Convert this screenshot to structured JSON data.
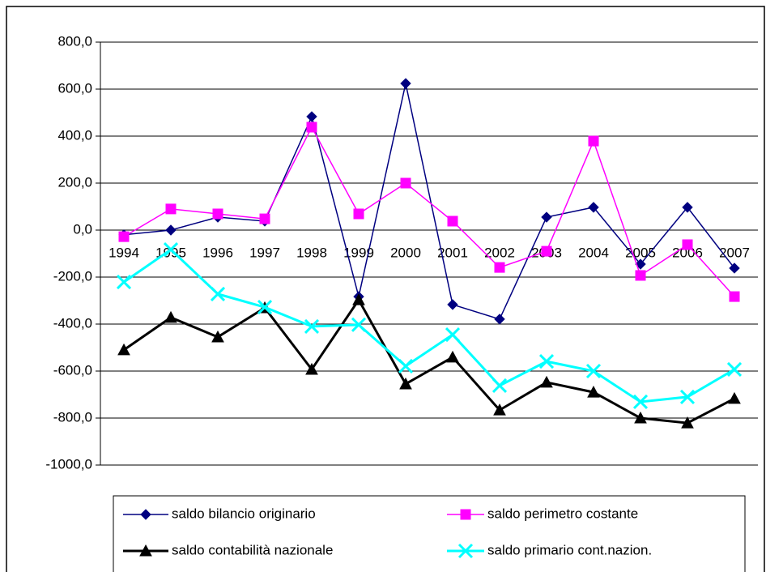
{
  "chart_data": {
    "type": "line",
    "categories": [
      "1994",
      "1995",
      "1996",
      "1997",
      "1998",
      "1999",
      "2000",
      "2001",
      "2002",
      "2003",
      "2004",
      "2005",
      "2006",
      "2007"
    ],
    "series": [
      {
        "name": "saldo bilancio originario",
        "color": "#000080",
        "marker": "diamond",
        "values": [
          -20,
          0,
          55,
          38,
          483,
          -283,
          624,
          -317,
          -379,
          55,
          97,
          -145,
          97,
          -162
        ]
      },
      {
        "name": "saldo perimetro costante",
        "color": "#ff00ff",
        "marker": "square",
        "values": [
          -28,
          90,
          69,
          48,
          438,
          69,
          200,
          38,
          -159,
          -90,
          379,
          -193,
          -62,
          -283
        ]
      },
      {
        "name": "saldo contabilità nazionale",
        "color": "#000000",
        "marker": "triangle",
        "values": [
          -510,
          -372,
          -455,
          -331,
          -593,
          -297,
          -655,
          -541,
          -766,
          -648,
          -690,
          -800,
          -821,
          -717
        ]
      },
      {
        "name": "saldo primario cont.nazion.",
        "color": "#00ffff",
        "marker": "x",
        "values": [
          -221,
          -83,
          -272,
          -328,
          -410,
          -403,
          -579,
          -445,
          -662,
          -559,
          -600,
          -731,
          -710,
          -593
        ]
      }
    ],
    "ylim": [
      -1000,
      800
    ],
    "yticks": [
      {
        "value": -1000,
        "label": "-1000,0"
      },
      {
        "value": -800,
        "label": "-800,0"
      },
      {
        "value": -600,
        "label": "-600,0"
      },
      {
        "value": -400,
        "label": "-400,0"
      },
      {
        "value": -200,
        "label": "-200,0"
      },
      {
        "value": 0,
        "label": "0,0"
      },
      {
        "value": 200,
        "label": "200,0"
      },
      {
        "value": 400,
        "label": "400,0"
      },
      {
        "value": 600,
        "label": "600,0"
      },
      {
        "value": 800,
        "label": "800,0"
      }
    ],
    "grid": true
  }
}
